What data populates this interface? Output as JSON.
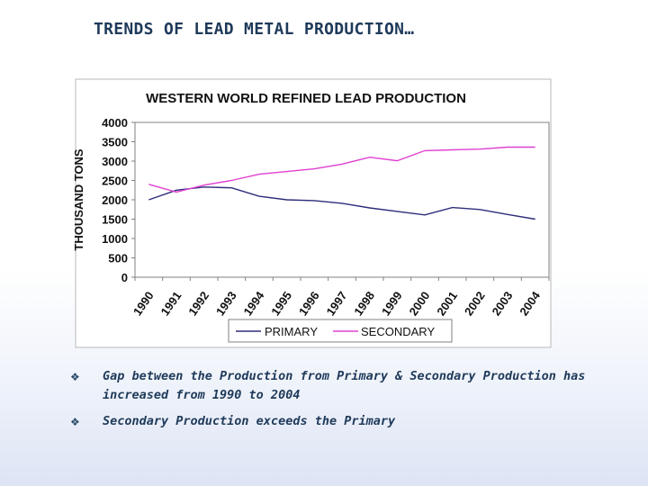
{
  "slide": {
    "title": "TRENDS OF LEAD METAL PRODUCTION…",
    "bullets": [
      "Gap between the Production from Primary & Secondary Production has increased from 1990 to 2004",
      "Secondary Production exceeds the Primary"
    ],
    "bullet_symbol": "❖"
  },
  "chart_data": {
    "type": "line",
    "title": "WESTERN WORLD REFINED LEAD PRODUCTION",
    "xlabel": "",
    "ylabel": "THOUSAND TONS",
    "categories": [
      "1990",
      "1991",
      "1992",
      "1993",
      "1994",
      "1995",
      "1996",
      "1997",
      "1998",
      "1999",
      "2000",
      "2001",
      "2002",
      "2003",
      "2004"
    ],
    "ylim": [
      0,
      4000
    ],
    "yticks": [
      0,
      500,
      1000,
      1500,
      2000,
      2500,
      3000,
      3500,
      4000
    ],
    "legend_position": "bottom",
    "series": [
      {
        "name": "PRIMARY",
        "color": "#2d2d7a",
        "values": [
          2000,
          2250,
          2330,
          2310,
          2090,
          2000,
          1980,
          1910,
          1790,
          1700,
          1610,
          1800,
          1750,
          1620,
          1500
        ]
      },
      {
        "name": "SECONDARY",
        "color": "#e040d0",
        "values": [
          2400,
          2200,
          2380,
          2500,
          2660,
          2730,
          2800,
          2920,
          3100,
          3010,
          3270,
          3290,
          3310,
          3360,
          3360
        ]
      }
    ]
  }
}
